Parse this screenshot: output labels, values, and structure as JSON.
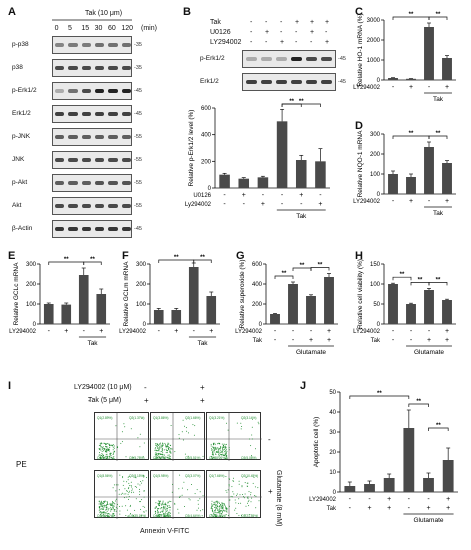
{
  "panels": {
    "A": {
      "label": "A",
      "treatment": "Tak (10 μm)",
      "time_points": [
        "0",
        "5",
        "15",
        "30",
        "60",
        "120"
      ],
      "time_unit": "(min)",
      "rows": [
        "p-p38",
        "p38",
        "p-Erk1/2",
        "Erk1/2",
        "p-JNK",
        "JNK",
        "p-Akt",
        "Akt",
        "β-Actin"
      ],
      "markers": [
        "-35",
        "-35",
        "-45",
        "-45",
        "-55",
        "-55",
        "-55",
        "-55",
        "-45"
      ]
    },
    "B": {
      "label": "B",
      "conditions": [
        {
          "name": "Tak",
          "signs": [
            "-",
            "-",
            "-",
            "+",
            "+",
            "+"
          ]
        },
        {
          "name": "U0126",
          "signs": [
            "-",
            "+",
            "-",
            "-",
            "+",
            "-"
          ]
        },
        {
          "name": "LY294002",
          "signs": [
            "-",
            "-",
            "+",
            "-",
            "-",
            "+"
          ]
        }
      ],
      "rows": [
        "p-Erk1/2",
        "Erk1/2"
      ],
      "markers": [
        "-45",
        "-45"
      ],
      "ylabel": "Relative p-Erk1/2 level (%)",
      "ticks": [
        "0",
        "200",
        "400",
        "600"
      ],
      "xrow1": "U0126",
      "xrow2": "Ly294002",
      "signs1": [
        "-",
        "+",
        "-",
        "-",
        "+",
        "-"
      ],
      "signs2": [
        "-",
        "-",
        "+",
        "-",
        "-",
        "+"
      ],
      "group": "Tak",
      "sig": "**"
    },
    "C": {
      "label": "C",
      "ylabel": "Relative HO-1 mRNA (%)",
      "ticks": [
        "0",
        "1000",
        "2000",
        "3000"
      ],
      "xrow": "LY294002",
      "signs": [
        "-",
        "+",
        "-",
        "+"
      ],
      "group": "Tak",
      "sig": "**"
    },
    "D": {
      "label": "D",
      "ylabel": "Relative NQO-1 mRNA",
      "ticks": [
        "0",
        "100",
        "200",
        "300"
      ],
      "xrow": "LY294002",
      "signs": [
        "-",
        "+",
        "-",
        "+"
      ],
      "group": "Tak",
      "sig": "**"
    },
    "E": {
      "label": "E",
      "ylabel": "Relative GCLc mRNA",
      "ticks": [
        "0",
        "100",
        "200",
        "300"
      ],
      "xrow": "LY294002",
      "signs": [
        "-",
        "+",
        "-",
        "+"
      ],
      "group": "Tak",
      "sig": "**"
    },
    "F": {
      "label": "F",
      "ylabel": "Relative GCLm mRNA",
      "ticks": [
        "0",
        "100",
        "200",
        "300"
      ],
      "xrow": "LY294002",
      "signs": [
        "-",
        "+",
        "-",
        "+"
      ],
      "group": "Tak",
      "sig": "**"
    },
    "G": {
      "label": "G",
      "ylabel": "Relative superoxide (%)",
      "ticks": [
        "0",
        "200",
        "400",
        "600"
      ],
      "xrow1": "LY294002",
      "xrow2": "Tak",
      "signs1": [
        "-",
        "-",
        "-",
        "+"
      ],
      "signs2": [
        "-",
        "-",
        "+",
        "+"
      ],
      "group": "Glutamate",
      "sig": "**"
    },
    "H": {
      "label": "H",
      "ylabel": "Relative cell viability (%)",
      "ticks": [
        "0",
        "50",
        "100",
        "150"
      ],
      "xrow1": "LY294002",
      "xrow2": "Tak",
      "signs1": [
        "-",
        "-",
        "-",
        "+"
      ],
      "signs2": [
        "-",
        "-",
        "+",
        "+"
      ],
      "group": "Glutamate",
      "sig": "**"
    },
    "I": {
      "label": "I",
      "cond1": "LY294002 (10 μM)",
      "cond2": "Tak (5 μM)",
      "cond1_signs": [
        "-",
        "-",
        "+"
      ],
      "cond2_signs": [
        "-",
        "+",
        "+"
      ],
      "ylabel": "PE",
      "xlabel": "Annexin V-FITC",
      "side_label": "Glutamate (8 mM)",
      "side_signs": [
        "-",
        "+"
      ],
      "quadrants": [
        [
          "Q1(2.89%)",
          "Q2(1.37%)",
          "Q4(90.11%)",
          "Q3(5.78%)"
        ],
        [
          "Q1(3.86%)",
          "Q2(1.66%)",
          "Q4(86.59%)",
          "Q3(5.51%)"
        ],
        [
          "Q1(3.21%)",
          "Q2(3.14%)",
          "Q4(88.26%)",
          "Q3(5.08%)"
        ],
        [
          "Q1(8.56%)",
          "Q2(8.15%)",
          "Q4(48.50%)",
          "Q3(35.15%)"
        ],
        [
          "Q1(5.98%)",
          "Q2(3.07%)",
          "Q4(85.98%)",
          "Q3(4.64%)"
        ],
        [
          "Q1(7.66%)",
          "Q2(10.45%)",
          "Q4(61.39%)",
          "Q3(21.55%)"
        ]
      ]
    },
    "J": {
      "label": "J",
      "ylabel": "Apoptotic cell (%)",
      "ticks": [
        "0",
        "10",
        "20",
        "30",
        "40",
        "50"
      ],
      "xrow1": "LY294002",
      "xrow2": "Tak",
      "signs1": [
        "-",
        "-",
        "+",
        "-",
        "-",
        "+"
      ],
      "signs2": [
        "-",
        "+",
        "+",
        "-",
        "+",
        "+"
      ],
      "group": "Glutamate",
      "sig": "**"
    }
  },
  "chart_data": [
    {
      "type": "bar",
      "panel": "B",
      "values": [
        100,
        70,
        80,
        500,
        210,
        200
      ],
      "errors": [
        10,
        8,
        8,
        90,
        35,
        95
      ],
      "ylim": [
        0,
        600
      ]
    },
    {
      "type": "bar",
      "panel": "C",
      "values": [
        100,
        60,
        2650,
        1100
      ],
      "errors": [
        15,
        10,
        200,
        120
      ],
      "ylim": [
        0,
        3000
      ]
    },
    {
      "type": "bar",
      "panel": "D",
      "values": [
        100,
        85,
        235,
        155
      ],
      "errors": [
        15,
        15,
        25,
        12
      ],
      "ylim": [
        0,
        300
      ]
    },
    {
      "type": "bar",
      "panel": "E",
      "values": [
        100,
        97,
        245,
        150
      ],
      "errors": [
        5,
        8,
        35,
        25
      ],
      "ylim": [
        0,
        300
      ]
    },
    {
      "type": "bar",
      "panel": "F",
      "values": [
        70,
        70,
        285,
        140
      ],
      "errors": [
        8,
        8,
        20,
        20
      ],
      "ylim": [
        0,
        300
      ]
    },
    {
      "type": "bar",
      "panel": "G",
      "values": [
        100,
        400,
        280,
        470
      ],
      "errors": [
        5,
        20,
        12,
        35
      ],
      "ylim": [
        0,
        600
      ]
    },
    {
      "type": "bar",
      "panel": "H",
      "values": [
        100,
        50,
        85,
        60
      ],
      "errors": [
        2,
        2,
        4,
        2
      ],
      "ylim": [
        0,
        150
      ]
    },
    {
      "type": "bar",
      "panel": "J",
      "values": [
        3,
        4,
        7,
        32,
        7,
        16
      ],
      "errors": [
        2,
        1.5,
        2,
        9,
        2.5,
        6
      ],
      "ylim": [
        0,
        50
      ]
    }
  ]
}
